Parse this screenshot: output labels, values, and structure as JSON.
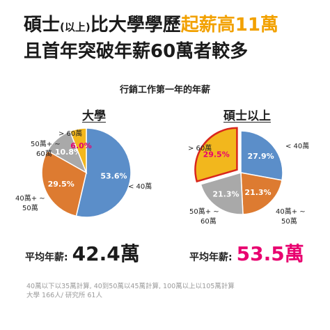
{
  "headline": {
    "line1_a": "碩士",
    "line1_small": "(以上)",
    "line1_b": "比大學學歷",
    "line1_accent": "起薪高11萬",
    "line2": "且首年突破年薪60萬者較多"
  },
  "subtitle": "行銷工作第一年的年薪",
  "colors": {
    "blue": "#5b8ec9",
    "orange": "#dd7b31",
    "gray": "#a9a9a9",
    "gold": "#f2b71d",
    "accent_text": "#f2a100",
    "highlight": "#e8006f",
    "highlight_border": "#d9261c"
  },
  "chart_data": [
    {
      "type": "pie",
      "title": "大學",
      "slices": [
        {
          "label": "< 40萬",
          "value": 53.6,
          "text": "53.6%",
          "color": "#5b8ec9"
        },
        {
          "label": "40萬+ ~ 50萬",
          "value": 29.5,
          "text": "29.5%",
          "color": "#dd7b31"
        },
        {
          "label": "50萬+ ~ 60萬",
          "value": 10.8,
          "text": "10.8%",
          "color": "#a9a9a9"
        },
        {
          "label": "> 60萬",
          "value": 6.0,
          "text": "6.0%",
          "color": "#f2b71d",
          "highlight": true
        }
      ],
      "average_label": "平均年薪:",
      "average_value": "42.4萬"
    },
    {
      "type": "pie",
      "title": "碩士以上",
      "slices": [
        {
          "label": "< 40萬",
          "value": 27.9,
          "text": "27.9%",
          "color": "#5b8ec9"
        },
        {
          "label": "40萬+ ~ 50萬",
          "value": 21.3,
          "text": "21.3%",
          "color": "#dd7b31"
        },
        {
          "label": "50萬+ ~ 60萬",
          "value": 21.3,
          "text": "21.3%",
          "color": "#a9a9a9"
        },
        {
          "label": "> 60萬",
          "value": 29.5,
          "text": "29.5%",
          "color": "#f2b71d",
          "highlight": true
        }
      ],
      "average_label": "平均年薪:",
      "average_value": "53.5萬"
    }
  ],
  "footnote": {
    "line1": "40萬以下以35萬計算, 40到50萬以45萬計算, 100萬以上以105萬計算",
    "line2": "大學 166人/ 研究所 61人"
  }
}
